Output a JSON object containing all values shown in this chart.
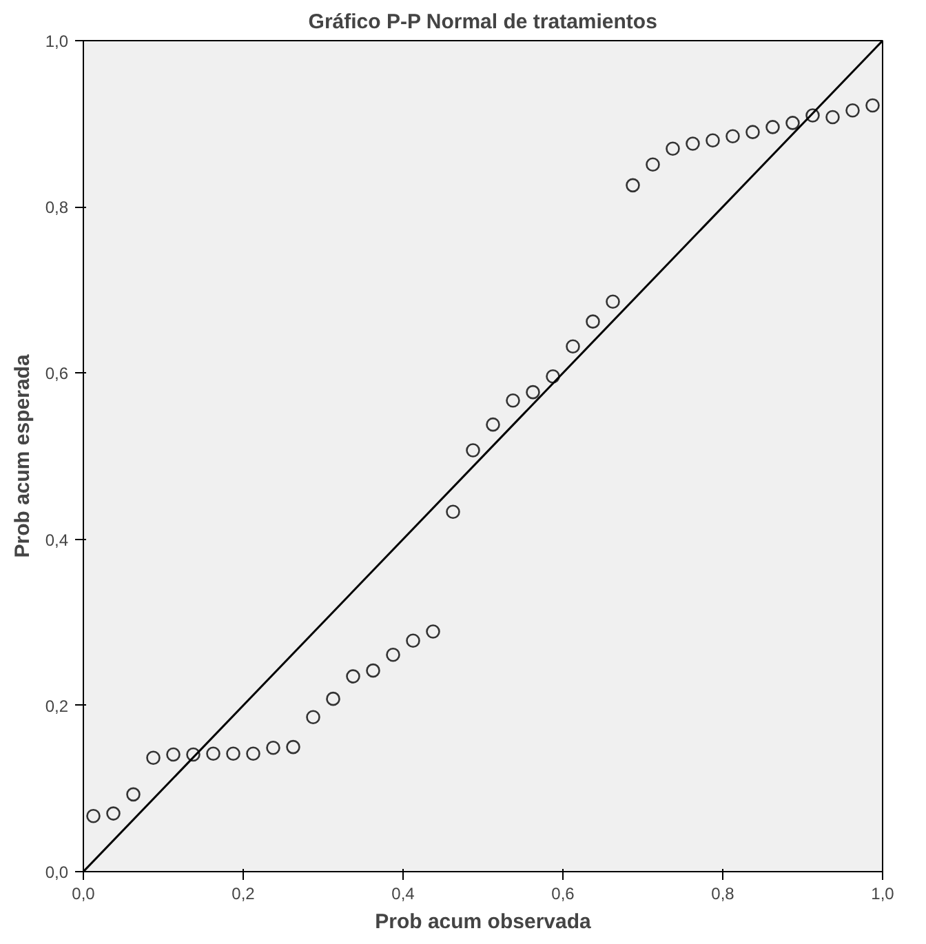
{
  "chart_data": {
    "type": "scatter",
    "title": "Gráfico P-P Normal de tratamientos",
    "xlabel": "Prob acum observada",
    "ylabel": "Prob acum esperada",
    "xlim": [
      0,
      1
    ],
    "ylim": [
      0,
      1
    ],
    "xticks": [
      {
        "value": 0,
        "label": "0,0"
      },
      {
        "value": 0.2,
        "label": "0,2"
      },
      {
        "value": 0.4,
        "label": "0,4"
      },
      {
        "value": 0.6,
        "label": "0,6"
      },
      {
        "value": 0.8,
        "label": "0,8"
      },
      {
        "value": 1,
        "label": "1,0"
      }
    ],
    "yticks": [
      {
        "value": 0,
        "label": "0,0"
      },
      {
        "value": 0.2,
        "label": "0,2"
      },
      {
        "value": 0.4,
        "label": "0,4"
      },
      {
        "value": 0.6,
        "label": "0,6"
      },
      {
        "value": 0.8,
        "label": "0,8"
      },
      {
        "value": 1,
        "label": "1,0"
      }
    ],
    "grid": false,
    "series": [
      {
        "marker": "circle",
        "color": "#333333",
        "x": [
          0.0125,
          0.0375,
          0.0625,
          0.0875,
          0.1125,
          0.1375,
          0.1625,
          0.1875,
          0.2125,
          0.2375,
          0.2625,
          0.2875,
          0.3125,
          0.3375,
          0.3625,
          0.3875,
          0.4125,
          0.4375,
          0.4625,
          0.4875,
          0.5125,
          0.5375,
          0.5625,
          0.5875,
          0.6125,
          0.6375,
          0.6625,
          0.6875,
          0.7125,
          0.7375,
          0.7625,
          0.7875,
          0.8125,
          0.8375,
          0.8625,
          0.8875,
          0.9125,
          0.9375,
          0.9625,
          0.9875
        ],
        "values": [
          0.067,
          0.07,
          0.093,
          0.137,
          0.141,
          0.141,
          0.142,
          0.142,
          0.142,
          0.149,
          0.15,
          0.186,
          0.208,
          0.235,
          0.242,
          0.261,
          0.278,
          0.289,
          0.433,
          0.507,
          0.538,
          0.567,
          0.577,
          0.596,
          0.632,
          0.662,
          0.686,
          0.826,
          0.851,
          0.87,
          0.876,
          0.88,
          0.885,
          0.89,
          0.896,
          0.901,
          0.91,
          0.908,
          0.916,
          0.922
        ]
      },
      {
        "type": "line",
        "marker": "none",
        "color": "#000000",
        "x": [
          0,
          1
        ],
        "values": [
          0,
          1
        ]
      }
    ]
  }
}
